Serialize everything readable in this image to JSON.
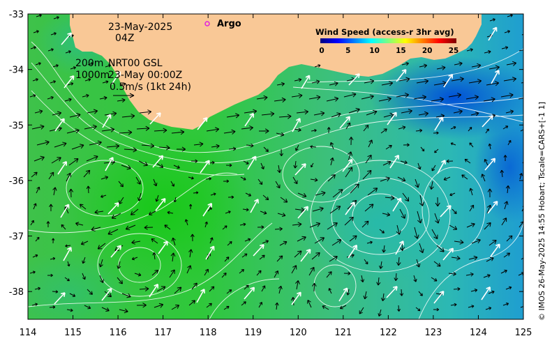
{
  "map": {
    "date_line": "23-May-2025",
    "time_line": "04Z",
    "depth_line": "200m",
    "product_line": "NRT00 GSL",
    "contour_line": "1000m",
    "valid_line": "23-May 00:00Z",
    "scale_line": "0.5m/s (1kt 24h)",
    "argo_label": "Argo",
    "argo_color": "#e020e0",
    "land_color": "#f9c896",
    "side_text": "© IMOS 26-May-2025 14:55 Hobart; Tscale=CARS+[-1 1]"
  },
  "legend": {
    "title": "Wind Speed (access-r 3hr avg)",
    "ticks": [
      "0",
      "5",
      "10",
      "15",
      "20",
      "25"
    ],
    "colors": [
      "#00007f",
      "#0000ff",
      "#007fff",
      "#00ffff",
      "#7fff7f",
      "#ffff00",
      "#ff7f00",
      "#ff0000",
      "#7f0000"
    ]
  },
  "axes": {
    "x_ticks": [
      "114",
      "115",
      "116",
      "117",
      "118",
      "119",
      "120",
      "121",
      "122",
      "123",
      "124",
      "125"
    ],
    "y_ticks": [
      "-33",
      "-34",
      "-35",
      "-36",
      "-37",
      "-38"
    ],
    "xlim": [
      114,
      125
    ],
    "ylim": [
      -38.5,
      -33
    ]
  }
}
